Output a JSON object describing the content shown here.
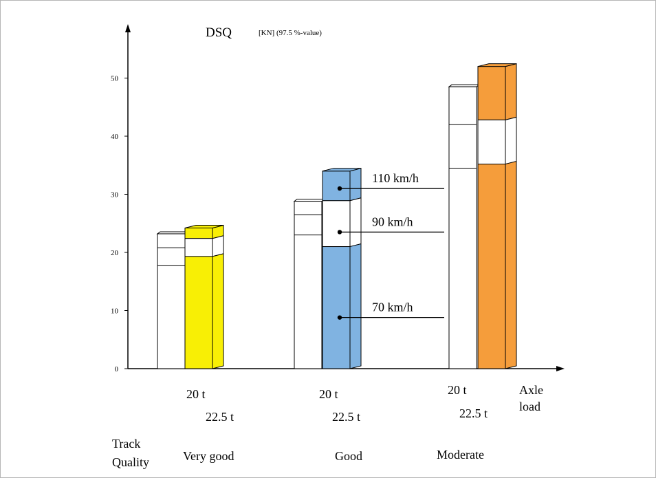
{
  "chart_data": {
    "type": "bar",
    "title": "DSQ",
    "unit": "[KN] (97.5 %-value)",
    "y_ticks": [
      "0",
      "10",
      "20",
      "30",
      "40",
      "50"
    ],
    "ylim": [
      0,
      55
    ],
    "axis_end_label": [
      "Axle",
      "load"
    ],
    "row_header": [
      "Track",
      "Quality"
    ],
    "series": [
      {
        "name": "20 t",
        "values": {
          "70 km/h": [
            17.7,
            23,
            34.5
          ],
          "90 km/h": [
            20.8,
            26.5,
            42
          ],
          "110 km/h": [
            23.2,
            28.8,
            48.5
          ]
        }
      },
      {
        "name": "22.5 t",
        "values": {
          "70 km/h": [
            19.3,
            21,
            35.2
          ],
          "90 km/h": [
            22.4,
            28.9,
            42.8
          ],
          "110 km/h": [
            24.2,
            34,
            52
          ]
        }
      }
    ],
    "groups": [
      {
        "quality": "Very good",
        "color": "#f8ef05",
        "x20": "20 t",
        "x225": "22.5 t"
      },
      {
        "quality": "Good",
        "color": "#80b3e1",
        "x20": "20 t",
        "x225": "22.5 t"
      },
      {
        "quality": "Moderate",
        "color": "#f59d3b",
        "x20": "20 t",
        "x225": "22.5 t"
      }
    ],
    "speed_labels": [
      {
        "label": "110 km/h",
        "value": 31
      },
      {
        "label": "90 km/h",
        "value": 23.5
      },
      {
        "label": "70 km/h",
        "value": 8.8
      }
    ]
  }
}
